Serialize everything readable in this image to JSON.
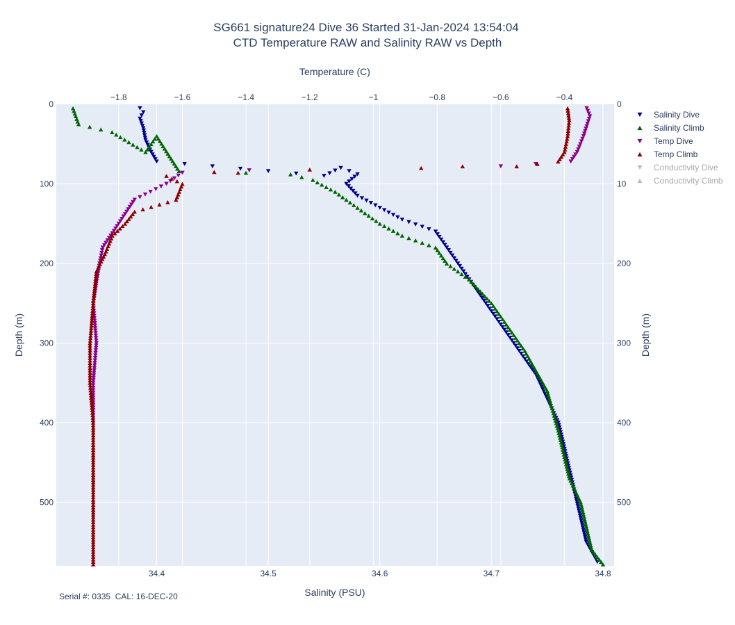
{
  "chart_data": {
    "type": "scatter",
    "title": "SG661 signature24 Dive 36 Started 31-Jan-2024 13:54:04",
    "subtitle": "CTD Temperature RAW and Salinity RAW vs Depth",
    "axes": {
      "x_bottom": {
        "label": "Salinity (PSU)",
        "range": [
          34.31,
          34.81
        ],
        "ticks": [
          34.4,
          34.5,
          34.6,
          34.7,
          34.8
        ]
      },
      "x_top": {
        "label": "Temperature (C)",
        "range": [
          -1.996,
          -0.244
        ],
        "ticks": [
          -1.8,
          -1.6,
          -1.4,
          -1.2,
          -1,
          -0.8,
          -0.6,
          -0.4
        ]
      },
      "y_left": {
        "label": "Depth (m)",
        "range": [
          0,
          580
        ],
        "reversed": true,
        "ticks": [
          0,
          100,
          200,
          300,
          400,
          500
        ]
      },
      "y_right": {
        "label": "Depth (m)",
        "ticks": [
          0,
          10,
          200,
          300,
          400,
          500
        ]
      }
    },
    "grid": true,
    "legend_position": "right",
    "footer": "Serial #: 0335  CAL: 16-DEC-20",
    "series": [
      {
        "name": "Salinity Dive",
        "axis": "salinity",
        "marker": "triangle-down",
        "color": "#00008b",
        "points": [
          [
            34.385,
            5
          ],
          [
            34.388,
            10
          ],
          [
            34.385,
            18
          ],
          [
            34.388,
            30
          ],
          [
            34.39,
            45
          ],
          [
            34.395,
            60
          ],
          [
            34.4,
            72
          ],
          [
            34.55,
            90
          ],
          [
            34.565,
            80
          ],
          [
            34.58,
            88
          ],
          [
            34.57,
            100
          ],
          [
            34.58,
            115
          ],
          [
            34.6,
            130
          ],
          [
            34.62,
            145
          ],
          [
            34.65,
            160
          ],
          [
            34.66,
            180
          ],
          [
            34.67,
            200
          ],
          [
            34.68,
            220
          ],
          [
            34.69,
            240
          ],
          [
            34.7,
            260
          ],
          [
            34.71,
            280
          ],
          [
            34.72,
            300
          ],
          [
            34.73,
            320
          ],
          [
            34.74,
            340
          ],
          [
            34.75,
            370
          ],
          [
            34.76,
            400
          ],
          [
            34.765,
            430
          ],
          [
            34.77,
            460
          ],
          [
            34.775,
            490
          ],
          [
            34.78,
            520
          ],
          [
            34.785,
            550
          ],
          [
            34.795,
            575
          ]
        ]
      },
      {
        "name": "Salinity Climb",
        "axis": "salinity",
        "marker": "triangle-up",
        "color": "#006400",
        "points": [
          [
            34.325,
            5
          ],
          [
            34.33,
            25
          ],
          [
            34.36,
            35
          ],
          [
            34.39,
            60
          ],
          [
            34.4,
            40
          ],
          [
            34.42,
            84
          ],
          [
            34.48,
            86
          ],
          [
            34.52,
            88
          ],
          [
            34.54,
            95
          ],
          [
            34.56,
            110
          ],
          [
            34.58,
            130
          ],
          [
            34.6,
            150
          ],
          [
            34.62,
            165
          ],
          [
            34.65,
            180
          ],
          [
            34.66,
            200
          ],
          [
            34.68,
            220
          ],
          [
            34.7,
            250
          ],
          [
            34.71,
            270
          ],
          [
            34.72,
            290
          ],
          [
            34.73,
            310
          ],
          [
            34.74,
            335
          ],
          [
            34.75,
            360
          ],
          [
            34.755,
            385
          ],
          [
            34.76,
            410
          ],
          [
            34.765,
            440
          ],
          [
            34.77,
            470
          ],
          [
            34.78,
            500
          ],
          [
            34.785,
            530
          ],
          [
            34.79,
            560
          ],
          [
            34.8,
            578
          ]
        ]
      },
      {
        "name": "Temp Dive",
        "axis": "temperature",
        "marker": "triangle-down",
        "color": "#8b008b",
        "points": [
          [
            -0.33,
            5
          ],
          [
            -0.32,
            15
          ],
          [
            -0.34,
            40
          ],
          [
            -0.36,
            60
          ],
          [
            -0.38,
            72
          ],
          [
            -0.6,
            78
          ],
          [
            -1.39,
            83
          ],
          [
            -1.6,
            86
          ],
          [
            -1.65,
            100
          ],
          [
            -1.75,
            120
          ],
          [
            -1.8,
            150
          ],
          [
            -1.85,
            180
          ],
          [
            -1.86,
            200
          ],
          [
            -1.88,
            250
          ],
          [
            -1.87,
            300
          ],
          [
            -1.88,
            350
          ],
          [
            -1.88,
            400
          ]
        ]
      },
      {
        "name": "Temp Climb",
        "axis": "temperature",
        "marker": "triangle-up",
        "color": "#8b0000",
        "points": [
          [
            -0.39,
            5
          ],
          [
            -0.385,
            20
          ],
          [
            -0.39,
            40
          ],
          [
            -0.4,
            60
          ],
          [
            -0.42,
            72
          ],
          [
            -0.55,
            78
          ],
          [
            -0.72,
            78
          ],
          [
            -0.85,
            80
          ],
          [
            -1.5,
            85
          ],
          [
            -1.2,
            82
          ],
          [
            -1.65,
            90
          ],
          [
            -1.6,
            100
          ],
          [
            -1.62,
            120
          ],
          [
            -1.75,
            135
          ],
          [
            -1.78,
            150
          ],
          [
            -1.82,
            165
          ],
          [
            -1.84,
            185
          ],
          [
            -1.87,
            210
          ],
          [
            -1.88,
            250
          ],
          [
            -1.89,
            300
          ],
          [
            -1.89,
            350
          ],
          [
            -1.88,
            400
          ],
          [
            -1.88,
            450
          ],
          [
            -1.88,
            500
          ],
          [
            -1.88,
            550
          ],
          [
            -1.88,
            578
          ]
        ]
      },
      {
        "name": "Conductivity Dive",
        "axis": "none",
        "marker": "triangle-down",
        "color": "#bbbbbb",
        "points": []
      },
      {
        "name": "Conductivity Climb",
        "axis": "none",
        "marker": "triangle-up",
        "color": "#bbbbbb",
        "points": []
      }
    ]
  }
}
